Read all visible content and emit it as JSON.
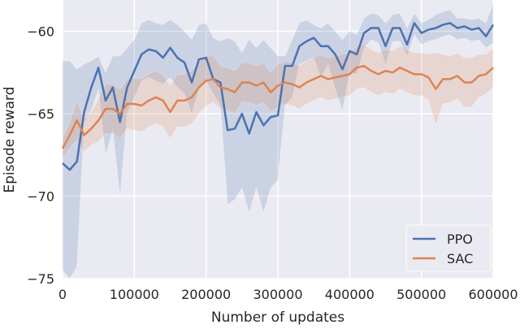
{
  "chart_data": {
    "type": "line",
    "title": "",
    "xlabel": "Number of updates",
    "ylabel": "Episode reward",
    "xlim": [
      0,
      600000
    ],
    "ylim": [
      -75,
      -58.1
    ],
    "xticks": [
      0,
      100000,
      200000,
      300000,
      400000,
      500000,
      600000
    ],
    "xtick_labels": [
      "0",
      "100000",
      "200000",
      "300000",
      "400000",
      "500000",
      "600000"
    ],
    "yticks": [
      -60,
      -65,
      -70,
      -75
    ],
    "ytick_labels": [
      "−60",
      "−65",
      "−70",
      "−75"
    ],
    "grid": true,
    "legend_position": "lower-right",
    "x_step": 10000,
    "series": [
      {
        "name": "PPO",
        "color": "#4c72b0",
        "values": [
          -68.0,
          -68.4,
          -67.9,
          -64.9,
          -63.4,
          -62.2,
          -64.2,
          -63.4,
          -65.5,
          -63.4,
          -62.4,
          -61.4,
          -61.1,
          -61.2,
          -61.6,
          -61.0,
          -61.6,
          -61.9,
          -63.1,
          -61.7,
          -61.6,
          -62.9,
          -63.1,
          -66.0,
          -65.9,
          -65.0,
          -66.2,
          -64.9,
          -65.7,
          -65.2,
          -65.1,
          -62.1,
          -62.1,
          -60.9,
          -60.6,
          -60.4,
          -60.9,
          -60.9,
          -61.4,
          -62.3,
          -61.2,
          -61.4,
          -60.1,
          -59.8,
          -59.8,
          -60.9,
          -59.8,
          -59.8,
          -60.8,
          -59.5,
          -60.1,
          -59.9,
          -59.8,
          -59.6,
          -59.5,
          -59.8,
          -59.7,
          -59.9,
          -59.8,
          -60.3,
          -59.6
        ],
        "upper": [
          -61.8,
          -61.8,
          -62.3,
          -62.0,
          -61.8,
          -61.5,
          -62.5,
          -61.5,
          -61.5,
          -61.0,
          -60.5,
          -59.5,
          -59.3,
          -59.5,
          -59.6,
          -59.3,
          -59.6,
          -60.0,
          -60.5,
          -59.6,
          -59.5,
          -60.4,
          -60.6,
          -60.4,
          -60.6,
          -61.3,
          -60.5,
          -61.0,
          -60.5,
          -61.0,
          -61.5,
          -61.5,
          -60.5,
          -59.5,
          -59.3,
          -59.6,
          -59.8,
          -59.5,
          -60.0,
          -60.5,
          -60.0,
          -60.2,
          -59.2,
          -58.9,
          -59.0,
          -59.5,
          -59.0,
          -58.9,
          -59.8,
          -58.9,
          -59.5,
          -59.3,
          -59.0,
          -58.8,
          -58.7,
          -59.2,
          -59.2,
          -59.3,
          -59.2,
          -59.5,
          -58.3
        ],
        "lower": [
          -74.5,
          -75.0,
          -74.3,
          -65.5,
          -64.8,
          -63.5,
          -67.5,
          -66.0,
          -70.0,
          -65.0,
          -64.0,
          -63.0,
          -62.8,
          -63.0,
          -63.2,
          -62.8,
          -63.4,
          -63.8,
          -65.0,
          -63.5,
          -63.0,
          -63.8,
          -64.5,
          -70.5,
          -70.2,
          -69.5,
          -71.0,
          -69.5,
          -71.0,
          -69.5,
          -69.0,
          -64.5,
          -64.0,
          -62.0,
          -61.8,
          -61.6,
          -62.8,
          -62.0,
          -63.5,
          -64.8,
          -62.5,
          -62.6,
          -61.0,
          -60.5,
          -60.7,
          -62.0,
          -60.6,
          -60.6,
          -61.5,
          -60.2,
          -60.8,
          -60.6,
          -60.5,
          -60.3,
          -60.2,
          -60.5,
          -60.4,
          -60.6,
          -60.5,
          -61.0,
          -60.7
        ]
      },
      {
        "name": "SAC",
        "color": "#dd8452",
        "values": [
          -67.1,
          -66.3,
          -65.4,
          -66.3,
          -65.9,
          -65.4,
          -64.7,
          -64.7,
          -65.0,
          -64.4,
          -64.4,
          -64.5,
          -64.2,
          -64.0,
          -64.2,
          -64.9,
          -64.2,
          -64.2,
          -64.0,
          -63.4,
          -63.0,
          -62.9,
          -63.4,
          -63.5,
          -63.7,
          -63.1,
          -63.1,
          -63.3,
          -63.1,
          -63.7,
          -63.3,
          -63.1,
          -63.2,
          -63.4,
          -63.1,
          -62.9,
          -62.7,
          -62.9,
          -62.8,
          -62.7,
          -62.6,
          -62.2,
          -62.1,
          -62.4,
          -62.6,
          -62.4,
          -62.5,
          -62.2,
          -62.4,
          -62.6,
          -62.6,
          -62.8,
          -63.5,
          -62.9,
          -62.9,
          -62.7,
          -63.1,
          -63.1,
          -62.7,
          -62.6,
          -62.2
        ],
        "spread": [
          0.6,
          0.8,
          1.2,
          1.0,
          1.0,
          1.3,
          1.5,
          1.5,
          1.5,
          1.5,
          1.6,
          1.6,
          1.6,
          1.6,
          1.6,
          1.6,
          1.6,
          1.6,
          1.6,
          1.6,
          1.5,
          1.4,
          1.3,
          1.3,
          1.3,
          1.2,
          1.2,
          1.2,
          1.2,
          1.2,
          1.3,
          1.3,
          1.3,
          1.3,
          1.3,
          1.3,
          1.3,
          1.3,
          1.3,
          1.3,
          1.3,
          1.3,
          1.3,
          1.3,
          1.3,
          1.3,
          1.3,
          1.3,
          1.3,
          1.3,
          1.3,
          1.4,
          2.2,
          1.5,
          1.4,
          1.4,
          1.5,
          1.5,
          1.3,
          1.2,
          1.2
        ]
      }
    ]
  }
}
